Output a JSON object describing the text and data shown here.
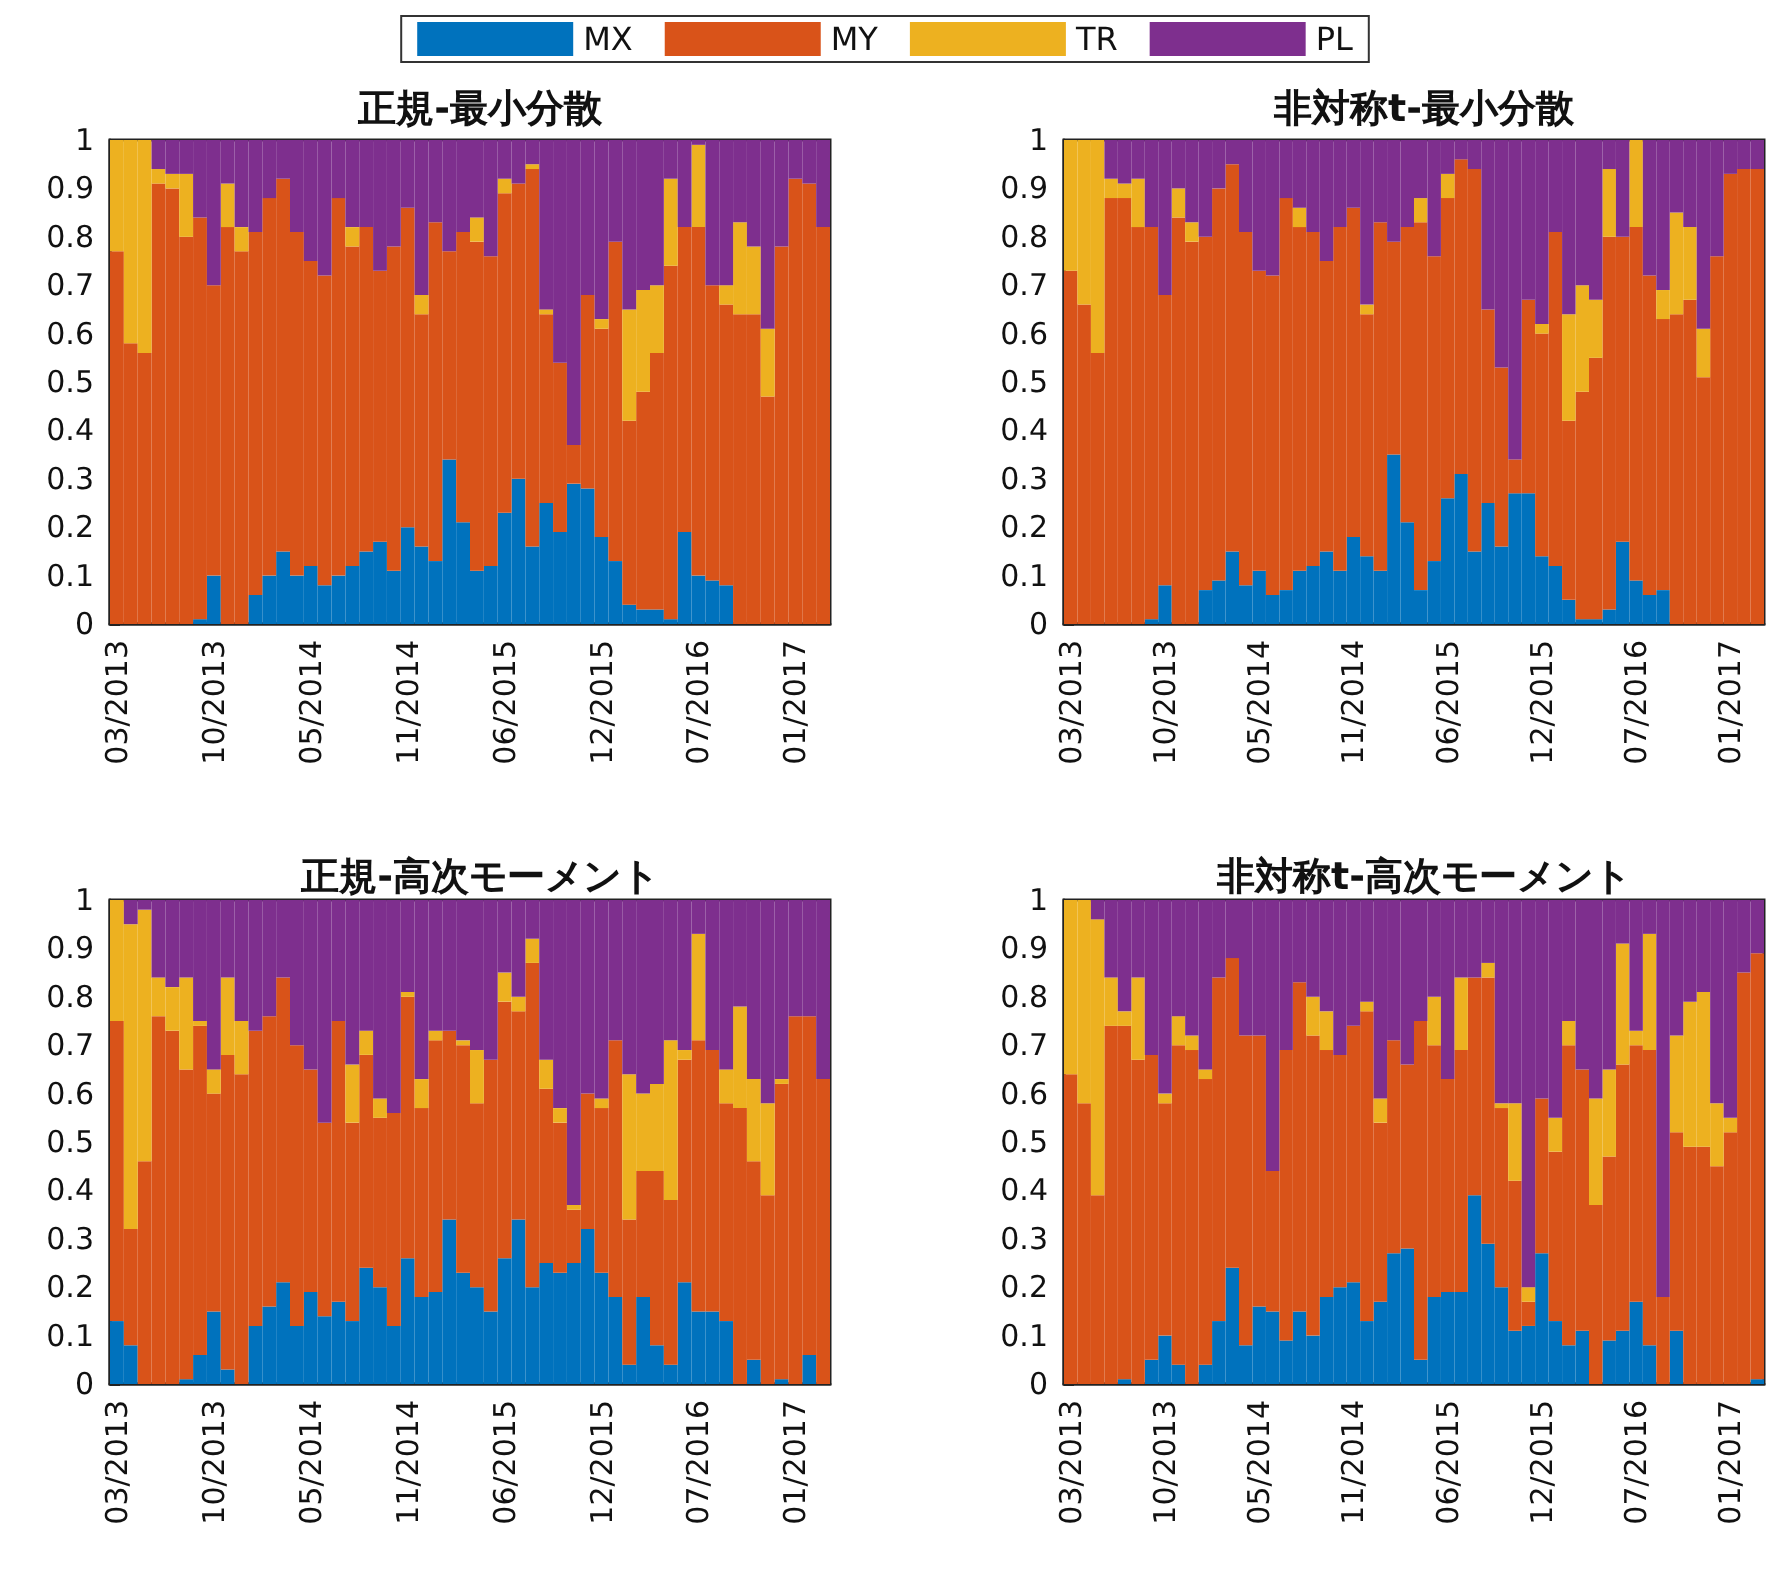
{
  "chart_data": [
    {
      "type": "bar",
      "title": "正規-最小分散",
      "stacked": true,
      "legend": "top",
      "ylim": [
        0,
        1
      ],
      "yticks": [
        0,
        0.1,
        0.2,
        0.3,
        0.4,
        0.5,
        0.6,
        0.7,
        0.8,
        0.9,
        1
      ],
      "categories": [
        "03/2013",
        null,
        null,
        null,
        null,
        null,
        null,
        "10/2013",
        null,
        null,
        null,
        null,
        null,
        null,
        "05/2014",
        null,
        null,
        null,
        null,
        null,
        null,
        "11/2014",
        null,
        null,
        null,
        null,
        null,
        null,
        "06/2015",
        null,
        null,
        null,
        null,
        null,
        null,
        "12/2015",
        null,
        null,
        null,
        null,
        null,
        null,
        "07/2016",
        null,
        null,
        null,
        null,
        null,
        null,
        "01/2017",
        null,
        null
      ],
      "series": [
        {
          "name": "MX",
          "color": "#0072bd",
          "values": [
            0,
            0,
            0,
            0,
            0,
            0,
            0.01,
            0.1,
            0,
            0,
            0.06,
            0.1,
            0.15,
            0.1,
            0.12,
            0.08,
            0.1,
            0.12,
            0.15,
            0.17,
            0.11,
            0.2,
            0.16,
            0.13,
            0.34,
            0.21,
            0.11,
            0.12,
            0.23,
            0.3,
            0.16,
            0.25,
            0.19,
            0.29,
            0.28,
            0.18,
            0.13,
            0.04,
            0.03,
            0.03,
            0.01,
            0.19,
            0.1,
            0.09,
            0.08,
            0,
            0,
            0,
            0,
            0,
            0,
            0
          ]
        },
        {
          "name": "MY",
          "color": "#d95319",
          "values": [
            0.77,
            0.58,
            0.56,
            0.91,
            0.9,
            0.8,
            0.83,
            0.6,
            0.82,
            0.77,
            0.75,
            0.78,
            0.77,
            0.71,
            0.63,
            0.64,
            0.78,
            0.66,
            0.67,
            0.56,
            0.67,
            0.66,
            0.48,
            0.7,
            0.43,
            0.6,
            0.68,
            0.64,
            0.66,
            0.61,
            0.78,
            0.39,
            0.35,
            0.08,
            0.4,
            0.43,
            0.66,
            0.38,
            0.45,
            0.53,
            0.73,
            0.63,
            0.72,
            0.61,
            0.58,
            0.64,
            0.64,
            0.47,
            0.78,
            0.92,
            0.91,
            0.82
          ]
        },
        {
          "name": "TR",
          "color": "#edb120",
          "values": [
            0.23,
            0.42,
            0.44,
            0.03,
            0.03,
            0.13,
            0,
            0,
            0.09,
            0.05,
            0,
            0,
            0,
            0,
            0,
            0,
            0,
            0.04,
            0,
            0,
            0,
            0,
            0.04,
            0,
            0,
            0,
            0.05,
            0,
            0.03,
            0,
            0.01,
            0.01,
            0,
            0,
            0,
            0.02,
            0,
            0.23,
            0.21,
            0.14,
            0.18,
            0,
            0.17,
            0,
            0.04,
            0.19,
            0.14,
            0.14,
            0,
            0,
            0,
            0
          ]
        },
        {
          "name": "PL",
          "color": "#7e2f8e",
          "values": [
            0,
            0,
            0,
            0.06,
            0.07,
            0.07,
            0.16,
            0.3,
            0.09,
            0.18,
            0.19,
            0.12,
            0.08,
            0.19,
            0.25,
            0.28,
            0.12,
            0.18,
            0.18,
            0.27,
            0.22,
            0.14,
            0.32,
            0.17,
            0.23,
            0.19,
            0.16,
            0.24,
            0.08,
            0.09,
            0.05,
            0.35,
            0.46,
            0.63,
            0.32,
            0.37,
            0.21,
            0.35,
            0.31,
            0.3,
            0.08,
            0.18,
            0.01,
            0.3,
            0.3,
            0.17,
            0.22,
            0.39,
            0.22,
            0.08,
            0.09,
            0.18
          ]
        }
      ]
    },
    {
      "type": "bar",
      "title": "非対称t-最小分散",
      "stacked": true,
      "ylim": [
        0,
        1
      ],
      "yticks": [
        0,
        0.1,
        0.2,
        0.3,
        0.4,
        0.5,
        0.6,
        0.7,
        0.8,
        0.9,
        1
      ],
      "categories": [
        "03/2013",
        null,
        null,
        null,
        null,
        null,
        null,
        "10/2013",
        null,
        null,
        null,
        null,
        null,
        null,
        "05/2014",
        null,
        null,
        null,
        null,
        null,
        null,
        "11/2014",
        null,
        null,
        null,
        null,
        null,
        null,
        "06/2015",
        null,
        null,
        null,
        null,
        null,
        null,
        "12/2015",
        null,
        null,
        null,
        null,
        null,
        null,
        "07/2016",
        null,
        null,
        null,
        null,
        null,
        null,
        "01/2017",
        null,
        null
      ],
      "series": [
        {
          "color": "#0072bd",
          "values": [
            0,
            0,
            0,
            0,
            0,
            0,
            0.01,
            0.08,
            0,
            0,
            0.07,
            0.09,
            0.15,
            0.08,
            0.11,
            0.06,
            0.07,
            0.11,
            0.12,
            0.15,
            0.11,
            0.18,
            0.14,
            0.11,
            0.35,
            0.21,
            0.07,
            0.13,
            0.26,
            0.31,
            0.15,
            0.25,
            0.16,
            0.27,
            0.27,
            0.14,
            0.12,
            0.05,
            0.01,
            0.01,
            0.03,
            0.17,
            0.09,
            0.06,
            0.07,
            0,
            0,
            0,
            0,
            0,
            0,
            0
          ]
        },
        {
          "color": "#d95319",
          "values": [
            0.73,
            0.66,
            0.56,
            0.88,
            0.88,
            0.82,
            0.81,
            0.6,
            0.84,
            0.79,
            0.73,
            0.81,
            0.8,
            0.73,
            0.62,
            0.66,
            0.81,
            0.71,
            0.69,
            0.6,
            0.71,
            0.68,
            0.5,
            0.72,
            0.44,
            0.61,
            0.76,
            0.63,
            0.62,
            0.65,
            0.79,
            0.4,
            0.37,
            0.07,
            0.4,
            0.46,
            0.69,
            0.37,
            0.47,
            0.54,
            0.77,
            0.63,
            0.73,
            0.66,
            0.56,
            0.64,
            0.67,
            0.51,
            0.76,
            0.93,
            0.94,
            0.94
          ]
        },
        {
          "color": "#edb120",
          "values": [
            0.27,
            0.34,
            0.44,
            0.04,
            0.03,
            0.1,
            0,
            0,
            0.06,
            0.04,
            0,
            0,
            0,
            0,
            0,
            0,
            0,
            0.04,
            0,
            0,
            0,
            0,
            0.02,
            0,
            0,
            0,
            0.05,
            0,
            0.05,
            0,
            0,
            0,
            0,
            0,
            0,
            0.02,
            0,
            0.22,
            0.22,
            0.12,
            0.14,
            0,
            0.18,
            0,
            0.06,
            0.21,
            0.15,
            0.1,
            0,
            0,
            0,
            0
          ]
        },
        {
          "color": "#7e2f8e",
          "values": [
            0,
            0,
            0,
            0.08,
            0.09,
            0.08,
            0.18,
            0.32,
            0.1,
            0.17,
            0.2,
            0.1,
            0.05,
            0.19,
            0.27,
            0.28,
            0.12,
            0.14,
            0.19,
            0.25,
            0.18,
            0.14,
            0.34,
            0.17,
            0.21,
            0.18,
            0.12,
            0.24,
            0.07,
            0.04,
            0.06,
            0.35,
            0.47,
            0.66,
            0.33,
            0.38,
            0.19,
            0.36,
            0.3,
            0.33,
            0.06,
            0.2,
            0,
            0.28,
            0.31,
            0.15,
            0.18,
            0.39,
            0.24,
            0.07,
            0.06,
            0.06
          ]
        }
      ]
    },
    {
      "type": "bar",
      "title": "正規-高次モーメント",
      "stacked": true,
      "ylim": [
        0,
        1
      ],
      "yticks": [
        0,
        0.1,
        0.2,
        0.3,
        0.4,
        0.5,
        0.6,
        0.7,
        0.8,
        0.9,
        1
      ],
      "categories": [
        "03/2013",
        null,
        null,
        null,
        null,
        null,
        null,
        "10/2013",
        null,
        null,
        null,
        null,
        null,
        null,
        "05/2014",
        null,
        null,
        null,
        null,
        null,
        null,
        "11/2014",
        null,
        null,
        null,
        null,
        null,
        null,
        "06/2015",
        null,
        null,
        null,
        null,
        null,
        null,
        "12/2015",
        null,
        null,
        null,
        null,
        null,
        null,
        "07/2016",
        null,
        null,
        null,
        null,
        null,
        null,
        "01/2017",
        null,
        null
      ],
      "series": [
        {
          "color": "#0072bd",
          "values": [
            0.13,
            0.08,
            0,
            0,
            0,
            0.01,
            0.06,
            0.15,
            0.03,
            0,
            0.12,
            0.16,
            0.21,
            0.12,
            0.19,
            0.14,
            0.17,
            0.13,
            0.24,
            0.2,
            0.12,
            0.26,
            0.18,
            0.19,
            0.34,
            0.23,
            0.2,
            0.15,
            0.26,
            0.34,
            0.2,
            0.25,
            0.23,
            0.25,
            0.32,
            0.23,
            0.18,
            0.04,
            0.18,
            0.08,
            0.04,
            0.21,
            0.15,
            0.15,
            0.13,
            0,
            0.05,
            0,
            0.01,
            0,
            0.06,
            0
          ]
        },
        {
          "color": "#d95319",
          "values": [
            0.62,
            0.24,
            0.46,
            0.76,
            0.73,
            0.64,
            0.68,
            0.45,
            0.65,
            0.64,
            0.61,
            0.6,
            0.63,
            0.58,
            0.46,
            0.4,
            0.58,
            0.41,
            0.44,
            0.35,
            0.44,
            0.54,
            0.39,
            0.52,
            0.39,
            0.47,
            0.38,
            0.52,
            0.53,
            0.43,
            0.67,
            0.36,
            0.31,
            0.11,
            0.28,
            0.34,
            0.53,
            0.3,
            0.26,
            0.36,
            0.34,
            0.46,
            0.56,
            0.54,
            0.45,
            0.57,
            0.41,
            0.39,
            0.61,
            0.76,
            0.7,
            0.63
          ]
        },
        {
          "color": "#edb120",
          "values": [
            0.25,
            0.63,
            0.52,
            0.08,
            0.09,
            0.19,
            0.01,
            0.05,
            0.16,
            0.11,
            0,
            0,
            0,
            0,
            0,
            0,
            0,
            0.12,
            0.05,
            0.04,
            0,
            0.01,
            0.06,
            0.02,
            0,
            0.01,
            0.11,
            0,
            0.06,
            0.03,
            0.05,
            0.06,
            0.03,
            0.01,
            0,
            0.02,
            0,
            0.3,
            0.16,
            0.18,
            0.33,
            0.02,
            0.22,
            0,
            0.07,
            0.21,
            0.17,
            0.19,
            0.01,
            0,
            0,
            0
          ]
        },
        {
          "color": "#7e2f8e",
          "values": [
            0,
            0.05,
            0.02,
            0.16,
            0.18,
            0.16,
            0.25,
            0.35,
            0.16,
            0.25,
            0.27,
            0.24,
            0.16,
            0.3,
            0.35,
            0.46,
            0.25,
            0.34,
            0.27,
            0.41,
            0.44,
            0.19,
            0.37,
            0.27,
            0.27,
            0.29,
            0.31,
            0.33,
            0.15,
            0.2,
            0.08,
            0.33,
            0.43,
            0.63,
            0.4,
            0.41,
            0.29,
            0.36,
            0.4,
            0.38,
            0.29,
            0.31,
            0.07,
            0.31,
            0.35,
            0.22,
            0.37,
            0.42,
            0.37,
            0.24,
            0.24,
            0.37
          ]
        }
      ]
    },
    {
      "type": "bar",
      "title": "非対称t-高次モーメント",
      "stacked": true,
      "ylim": [
        0,
        1
      ],
      "yticks": [
        0,
        0.1,
        0.2,
        0.3,
        0.4,
        0.5,
        0.6,
        0.7,
        0.8,
        0.9,
        1
      ],
      "categories": [
        "03/2013",
        null,
        null,
        null,
        null,
        null,
        null,
        "10/2013",
        null,
        null,
        null,
        null,
        null,
        null,
        "05/2014",
        null,
        null,
        null,
        null,
        null,
        null,
        "11/2014",
        null,
        null,
        null,
        null,
        null,
        null,
        "06/2015",
        null,
        null,
        null,
        null,
        null,
        null,
        "12/2015",
        null,
        null,
        null,
        null,
        null,
        null,
        "07/2016",
        null,
        null,
        null,
        null,
        null,
        null,
        "01/2017",
        null,
        null
      ],
      "series": [
        {
          "color": "#0072bd",
          "values": [
            0,
            0,
            0,
            0,
            0.01,
            0,
            0.05,
            0.1,
            0.04,
            0,
            0.04,
            0.13,
            0.24,
            0.08,
            0.16,
            0.15,
            0.09,
            0.15,
            0.1,
            0.18,
            0.2,
            0.21,
            0.13,
            0.17,
            0.27,
            0.28,
            0.05,
            0.18,
            0.19,
            0.19,
            0.39,
            0.29,
            0.2,
            0.11,
            0.12,
            0.27,
            0.13,
            0.08,
            0.11,
            0,
            0.09,
            0.11,
            0.17,
            0.08,
            0,
            0.11,
            0,
            0,
            0,
            0,
            0,
            0.01
          ]
        },
        {
          "color": "#d95319",
          "values": [
            0.64,
            0.58,
            0.39,
            0.74,
            0.73,
            0.67,
            0.63,
            0.48,
            0.66,
            0.69,
            0.59,
            0.71,
            0.64,
            0.64,
            0.56,
            0.29,
            0.6,
            0.68,
            0.62,
            0.51,
            0.48,
            0.53,
            0.64,
            0.37,
            0.44,
            0.38,
            0.7,
            0.52,
            0.44,
            0.5,
            0.45,
            0.55,
            0.37,
            0.31,
            0.05,
            0.32,
            0.35,
            0.62,
            0.54,
            0.37,
            0.38,
            0.55,
            0.53,
            0.61,
            0.18,
            0.41,
            0.49,
            0.49,
            0.45,
            0.52,
            0.85,
            0.88
          ]
        },
        {
          "color": "#edb120",
          "values": [
            0.36,
            0.42,
            0.57,
            0.1,
            0.03,
            0.17,
            0,
            0.02,
            0.06,
            0.03,
            0.02,
            0,
            0,
            0,
            0,
            0,
            0,
            0,
            0.08,
            0.08,
            0,
            0,
            0.02,
            0.05,
            0,
            0,
            0,
            0.1,
            0,
            0.15,
            0,
            0.03,
            0.01,
            0.16,
            0.03,
            0,
            0.07,
            0.05,
            0,
            0.22,
            0.18,
            0.25,
            0.03,
            0.24,
            0,
            0.2,
            0.3,
            0.32,
            0.13,
            0.03,
            0,
            0
          ]
        },
        {
          "color": "#7e2f8e",
          "values": [
            0,
            0,
            0.04,
            0.16,
            0.23,
            0.16,
            0.32,
            0.4,
            0.24,
            0.28,
            0.35,
            0.16,
            0.12,
            0.28,
            0.28,
            0.56,
            0.31,
            0.17,
            0.2,
            0.23,
            0.32,
            0.26,
            0.21,
            0.41,
            0.29,
            0.34,
            0.25,
            0.2,
            0.37,
            0.16,
            0.16,
            0.13,
            0.42,
            0.42,
            0.8,
            0.41,
            0.45,
            0.25,
            0.35,
            0.41,
            0.35,
            0.09,
            0.27,
            0.07,
            0.82,
            0.28,
            0.21,
            0.19,
            0.42,
            0.45,
            0.15,
            0.11
          ]
        }
      ]
    }
  ]
}
